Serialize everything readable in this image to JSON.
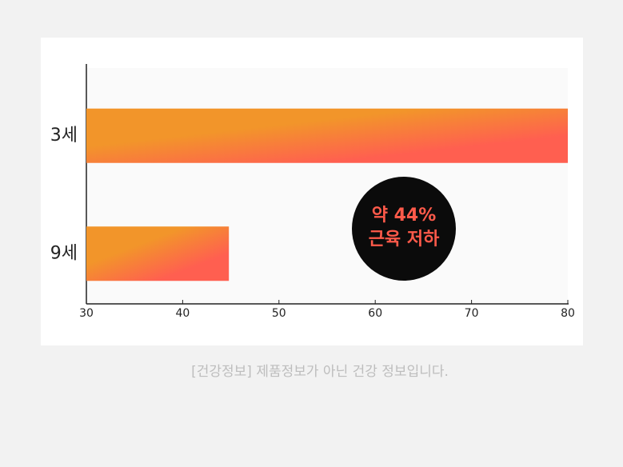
{
  "chart_data": {
    "type": "barh",
    "categories": [
      "3세",
      "9세"
    ],
    "values": [
      80,
      44.8
    ],
    "colors": [
      "#f2952a",
      "#ff5f50"
    ],
    "xlim": [
      30,
      80
    ],
    "xticks": [
      30,
      40,
      50,
      60,
      70,
      80
    ],
    "annotation": [
      "약 44%",
      "근육 저하"
    ]
  },
  "footer": "[건강정보] 제품정보가 아닌 건강 정보입니다."
}
